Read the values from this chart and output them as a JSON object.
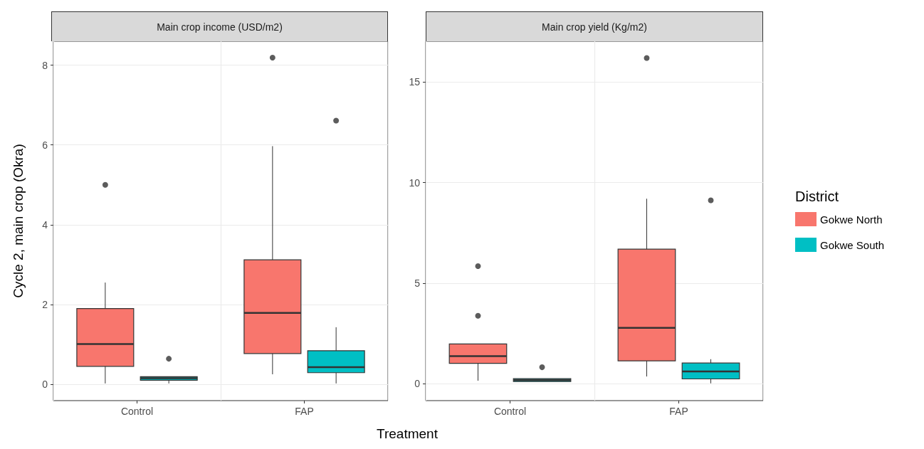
{
  "chart_data": [
    {
      "type": "box",
      "title": "Main crop income (USD/m2)",
      "ylabel": "Cycle 2, main crop (Okra)",
      "xlabel": "Treatment",
      "categories": [
        "Control",
        "FAP"
      ],
      "ylim": [
        -0.41,
        8.6
      ],
      "yticks": [
        0,
        2,
        4,
        6,
        8
      ],
      "grid": true,
      "series": [
        {
          "color": "#f8766d",
          "boxes": [
            {
              "low": 0.02,
              "q1": 0.45,
              "median": 1.01,
              "q3": 1.9,
              "high": 2.55,
              "outliers": [
                5.0
              ]
            },
            {
              "low": 0.25,
              "q1": 0.77,
              "median": 1.79,
              "q3": 3.12,
              "high": 5.97,
              "outliers": [
                8.19
              ]
            }
          ]
        },
        {
          "color": "#00bfc4",
          "boxes": [
            {
              "low": 0.02,
              "q1": 0.1,
              "median": 0.15,
              "q3": 0.19,
              "high": 0.19,
              "outliers": [
                0.64
              ]
            },
            {
              "low": 0.02,
              "q1": 0.29,
              "median": 0.43,
              "q3": 0.84,
              "high": 1.43,
              "outliers": [
                6.61
              ]
            }
          ]
        }
      ]
    },
    {
      "type": "box",
      "title": "Main crop yield (Kg/m2)",
      "categories": [
        "Control",
        "FAP"
      ],
      "ylim": [
        -0.84,
        17.03
      ],
      "yticks": [
        0,
        5,
        10,
        15
      ],
      "grid": true,
      "legend": "right",
      "legend_title": "District",
      "series": [
        {
          "name": "Gokwe North",
          "color": "#f8766d",
          "boxes": [
            {
              "low": 0.15,
              "q1": 1.01,
              "median": 1.37,
              "q3": 1.98,
              "high": 1.98,
              "outliers": [
                3.38,
                5.85
              ]
            },
            {
              "low": 0.36,
              "q1": 1.14,
              "median": 2.78,
              "q3": 6.69,
              "high": 9.2,
              "outliers": [
                16.2
              ]
            }
          ]
        },
        {
          "name": "Gokwe South",
          "color": "#00bfc4",
          "boxes": [
            {
              "low": 0.11,
              "q1": 0.11,
              "median": 0.18,
              "q3": 0.25,
              "high": 0.25,
              "outliers": [
                0.82
              ]
            },
            {
              "low": 0.02,
              "q1": 0.24,
              "median": 0.61,
              "q3": 1.03,
              "high": 1.22,
              "outliers": [
                9.12
              ]
            }
          ]
        }
      ]
    }
  ]
}
